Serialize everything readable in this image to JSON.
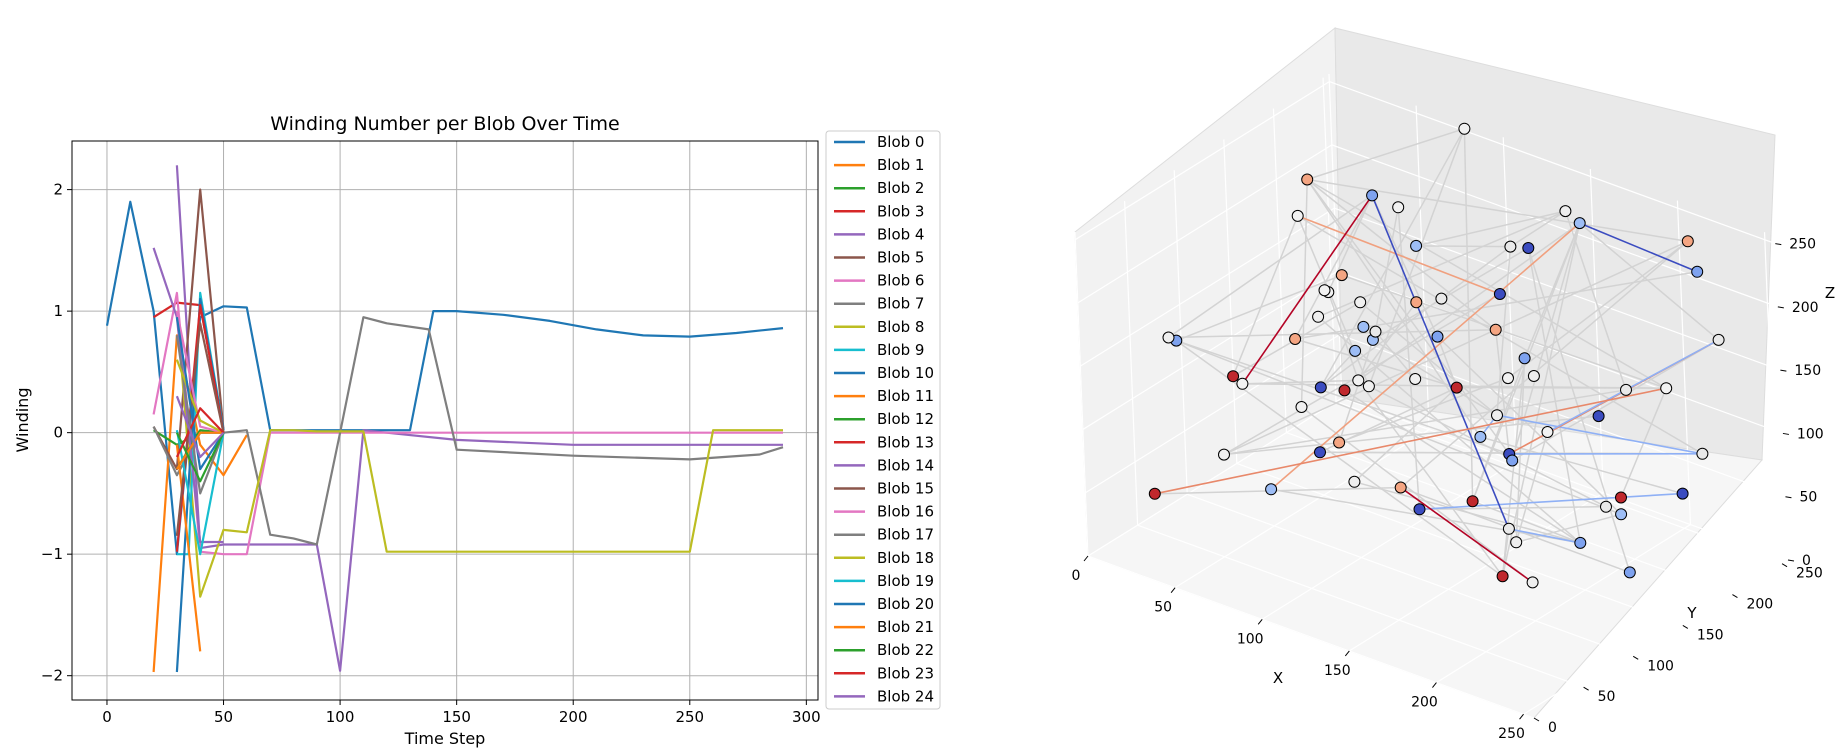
{
  "chart_data": [
    {
      "type": "line",
      "title": "Winding Number per Blob Over Time",
      "xlabel": "Time Step",
      "ylabel": "Winding",
      "xlim": [
        -15,
        305
      ],
      "ylim": [
        -2.2,
        2.4
      ],
      "xticks": [
        0,
        50,
        100,
        150,
        200,
        250,
        300
      ],
      "yticks": [
        -2,
        -1,
        0,
        1,
        2
      ],
      "grid": true,
      "legend": "outside-right",
      "series": [
        {
          "name": "Blob 0",
          "color": "#1f77b4",
          "x": [
            0,
            10,
            20,
            30,
            40,
            50,
            60,
            70,
            80,
            90,
            100,
            110,
            120,
            130,
            140,
            150,
            170,
            190,
            210,
            230,
            250,
            270,
            290
          ],
          "y": [
            0.88,
            1.9,
            1.0,
            -1.0,
            0.95,
            1.04,
            1.03,
            0.02,
            0.02,
            0.02,
            0.02,
            0.02,
            0.02,
            0.02,
            1.0,
            1.0,
            0.97,
            0.92,
            0.85,
            0.8,
            0.79,
            0.82,
            0.86
          ]
        },
        {
          "name": "Blob 1",
          "color": "#ff7f0e",
          "x": [
            20,
            30,
            40,
            50,
            60
          ],
          "y": [
            -1.97,
            0.8,
            -0.1,
            -0.35,
            -0.02
          ]
        },
        {
          "name": "Blob 2",
          "color": "#2ca02c",
          "x": [
            20,
            30,
            40,
            50
          ],
          "y": [
            0.02,
            -0.1,
            0.0,
            0.0
          ]
        },
        {
          "name": "Blob 3",
          "color": "#d62728",
          "x": [
            20,
            30,
            40,
            50
          ],
          "y": [
            0.95,
            1.07,
            1.05,
            0.02
          ]
        },
        {
          "name": "Blob 4",
          "color": "#9467bd",
          "x": [
            30,
            40,
            50,
            60,
            70,
            80,
            90,
            100,
            110,
            120,
            150,
            200,
            250,
            290
          ],
          "y": [
            2.2,
            -0.95,
            -0.92,
            -0.92,
            -0.92,
            -0.92,
            -0.92,
            -1.96,
            0.02,
            0.0,
            -0.06,
            -0.1,
            -0.1,
            -0.1
          ]
        },
        {
          "name": "Blob 5",
          "color": "#8c564b",
          "x": [
            20,
            30,
            40,
            50
          ],
          "y": [
            0.05,
            -0.3,
            2.0,
            0.02
          ]
        },
        {
          "name": "Blob 6",
          "color": "#e377c2",
          "x": [
            20,
            30,
            40,
            50,
            60,
            70,
            100,
            150,
            200,
            250,
            290
          ],
          "y": [
            0.15,
            1.15,
            -0.98,
            -1.0,
            -1.0,
            0.0,
            0.0,
            0.0,
            0.0,
            0.0,
            0.0
          ]
        },
        {
          "name": "Blob 7",
          "color": "#7f7f7f",
          "x": [
            20,
            30,
            40,
            50,
            60,
            70,
            80,
            90,
            100,
            110,
            120,
            138,
            150,
            200,
            250,
            280,
            290
          ],
          "y": [
            0.05,
            -0.35,
            0.0,
            0.0,
            0.02,
            -0.84,
            -0.87,
            -0.92,
            0.0,
            0.95,
            0.9,
            0.85,
            -0.14,
            -0.19,
            -0.22,
            -0.18,
            -0.12
          ]
        },
        {
          "name": "Blob 8",
          "color": "#bcbd22",
          "x": [
            30,
            40,
            50,
            60,
            70,
            80,
            90,
            100,
            110,
            120,
            150,
            200,
            250,
            260,
            270,
            290
          ],
          "y": [
            1.0,
            -1.35,
            -0.8,
            -0.82,
            0.02,
            0.02,
            0.01,
            0.01,
            0.01,
            -0.98,
            -0.98,
            -0.98,
            -0.98,
            0.02,
            0.02,
            0.02
          ]
        },
        {
          "name": "Blob 9",
          "color": "#17becf",
          "x": [
            30,
            35,
            40,
            50
          ],
          "y": [
            -1.0,
            -1.0,
            1.15,
            0.02
          ]
        },
        {
          "name": "Blob 10",
          "color": "#1f77b4",
          "x": [
            30,
            40,
            50
          ],
          "y": [
            -1.97,
            1.1,
            0.02
          ]
        },
        {
          "name": "Blob 11",
          "color": "#ff7f0e",
          "x": [
            30,
            40
          ],
          "y": [
            -0.1,
            -1.8
          ]
        },
        {
          "name": "Blob 12",
          "color": "#2ca02c",
          "x": [
            30,
            40,
            50
          ],
          "y": [
            -0.3,
            0.02,
            0.0
          ]
        },
        {
          "name": "Blob 13",
          "color": "#d62728",
          "x": [
            30,
            40,
            50
          ],
          "y": [
            -0.98,
            1.05,
            0.0
          ]
        },
        {
          "name": "Blob 14",
          "color": "#9467bd",
          "x": [
            20,
            30,
            40,
            50
          ],
          "y": [
            1.52,
            0.95,
            -0.9,
            -0.9
          ]
        },
        {
          "name": "Blob 15",
          "color": "#8c564b",
          "x": [
            30,
            40,
            50
          ],
          "y": [
            -0.85,
            0.9,
            0.0
          ]
        },
        {
          "name": "Blob 16",
          "color": "#e377c2",
          "x": [
            30,
            40,
            50
          ],
          "y": [
            1.0,
            0.05,
            0.0
          ]
        },
        {
          "name": "Blob 17",
          "color": "#7f7f7f",
          "x": [
            30,
            40,
            50
          ],
          "y": [
            0.8,
            -0.5,
            0.0
          ]
        },
        {
          "name": "Blob 18",
          "color": "#bcbd22",
          "x": [
            30,
            40,
            50
          ],
          "y": [
            0.6,
            0.1,
            0.0
          ]
        },
        {
          "name": "Blob 19",
          "color": "#17becf",
          "x": [
            30,
            40,
            50
          ],
          "y": [
            0.02,
            -1.0,
            0.0
          ]
        },
        {
          "name": "Blob 20",
          "color": "#1f77b4",
          "x": [
            30,
            40,
            50
          ],
          "y": [
            0.95,
            -0.3,
            0.0
          ]
        },
        {
          "name": "Blob 21",
          "color": "#ff7f0e",
          "x": [
            30,
            40,
            50
          ],
          "y": [
            -0.3,
            0.0,
            0.0
          ]
        },
        {
          "name": "Blob 22",
          "color": "#2ca02c",
          "x": [
            30,
            40,
            50
          ],
          "y": [
            0.0,
            -0.4,
            0.0
          ]
        },
        {
          "name": "Blob 23",
          "color": "#d62728",
          "x": [
            30,
            40,
            50
          ],
          "y": [
            -0.2,
            0.2,
            0.0
          ]
        },
        {
          "name": "Blob 24",
          "color": "#9467bd",
          "x": [
            30,
            40,
            50
          ],
          "y": [
            0.3,
            -0.2,
            0.0
          ]
        }
      ]
    },
    {
      "type": "scatter",
      "title": "",
      "xlabel": "X",
      "ylabel": "Y",
      "zlabel": "Z",
      "xlim": [
        0,
        256
      ],
      "ylim": [
        0,
        256
      ],
      "zlim": [
        0,
        256
      ],
      "xticks": [
        0,
        50,
        100,
        150,
        200,
        250
      ],
      "yticks": [
        0,
        50,
        100,
        150,
        200,
        250
      ],
      "zticks": [
        0,
        50,
        100,
        150,
        200,
        250
      ],
      "grid": true
    }
  ]
}
